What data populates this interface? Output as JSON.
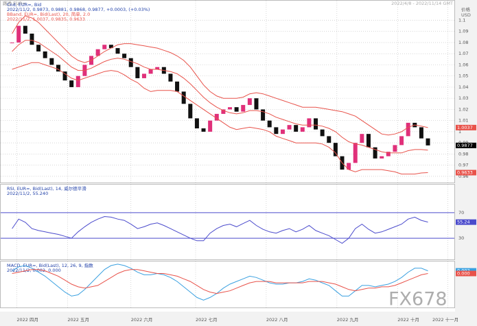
{
  "header": {
    "source": "路透 EUR=",
    "range": "2022/4/8 - 2022/11/14 GMT",
    "axis_title": "价格",
    "axis_unit": "USD",
    "watermark": "FX678"
  },
  "chart_data": [
    {
      "type": "candlestick",
      "title": "Cnd, EUR=, Bid",
      "subtitle": "2022/11/2, 0.9873, 0.9881, 0.9868, 0.9877, +0.0003, (+0.03%)",
      "title_2": "BBand, EUR=, Bid(Last), 20, 简单, 2.0",
      "subtitle_2": "2022/11/2, 1.0037, 0.9835, 0.9633",
      "ylim": [
        0.955,
        1.112
      ],
      "yticks": [
        0.96,
        0.97,
        0.98,
        0.99,
        1,
        1.01,
        1.02,
        1.03,
        1.04,
        1.05,
        1.06,
        1.07,
        1.08,
        1.09,
        1.1
      ],
      "up_color": "#e0307a",
      "down_color": "#111111",
      "series": [
        {
          "role": "candles",
          "color": "#000000",
          "last_value_tag": true,
          "values": [
            1.08,
            1.095,
            1.088,
            1.078,
            1.072,
            1.066,
            1.06,
            1.054,
            1.046,
            1.04,
            1.05,
            1.06,
            1.068,
            1.074,
            1.078,
            1.075,
            1.07,
            1.066,
            1.058,
            1.048,
            1.052,
            1.056,
            1.058,
            1.052,
            1.045,
            1.036,
            1.025,
            1.012,
            1.003,
            1.0,
            1.01,
            1.016,
            1.02,
            1.022,
            1.018,
            1.024,
            1.03,
            1.02,
            1.01,
            1.004,
            0.998,
            1.002,
            1.006,
            1.0,
            1.004,
            1.012,
            1.002,
            0.996,
            0.99,
            0.978,
            0.966,
            0.972,
            0.99,
            0.998,
            0.986,
            0.976,
            0.978,
            0.982,
            0.988,
            0.996,
            1.008,
            1.004,
            0.994,
            0.9877
          ]
        },
        {
          "role": "line",
          "color": "#e8524a",
          "last_value_tag": true,
          "values": [
            1.088,
            1.098,
            1.104,
            1.102,
            1.098,
            1.092,
            1.086,
            1.08,
            1.074,
            1.068,
            1.064,
            1.062,
            1.064,
            1.068,
            1.072,
            1.075,
            1.078,
            1.079,
            1.079,
            1.078,
            1.077,
            1.076,
            1.075,
            1.073,
            1.071,
            1.068,
            1.064,
            1.058,
            1.05,
            1.042,
            1.036,
            1.032,
            1.03,
            1.03,
            1.03,
            1.031,
            1.034,
            1.035,
            1.034,
            1.032,
            1.03,
            1.028,
            1.026,
            1.024,
            1.022,
            1.022,
            1.022,
            1.021,
            1.02,
            1.019,
            1.018,
            1.016,
            1.014,
            1.01,
            1.006,
            1.002,
            0.998,
            0.997,
            0.998,
            1.0,
            1.004,
            1.006,
            1.005,
            1.0037
          ]
        },
        {
          "role": "line",
          "color": "#e8524a",
          "last_value_tag": false,
          "values": [
            1.072,
            1.078,
            1.082,
            1.082,
            1.08,
            1.076,
            1.072,
            1.068,
            1.063,
            1.058,
            1.055,
            1.055,
            1.057,
            1.06,
            1.063,
            1.065,
            1.066,
            1.065,
            1.063,
            1.061,
            1.058,
            1.056,
            1.056,
            1.055,
            1.054,
            1.052,
            1.048,
            1.043,
            1.037,
            1.031,
            1.026,
            1.022,
            1.019,
            1.017,
            1.016,
            1.017,
            1.019,
            1.019,
            1.018,
            1.016,
            1.013,
            1.011,
            1.009,
            1.007,
            1.006,
            1.006,
            1.006,
            1.005,
            1.003,
            1.0,
            0.995,
            0.991,
            0.989,
            0.988,
            0.986,
            0.984,
            0.982,
            0.981,
            0.981,
            0.981,
            0.983,
            0.984,
            0.984,
            0.9835
          ]
        },
        {
          "role": "line",
          "color": "#e8524a",
          "last_value_tag": true,
          "values": [
            1.056,
            1.058,
            1.06,
            1.062,
            1.062,
            1.06,
            1.058,
            1.056,
            1.052,
            1.048,
            1.046,
            1.048,
            1.05,
            1.052,
            1.054,
            1.055,
            1.054,
            1.051,
            1.047,
            1.044,
            1.039,
            1.036,
            1.037,
            1.037,
            1.037,
            1.036,
            1.032,
            1.028,
            1.024,
            1.02,
            1.016,
            1.012,
            1.008,
            1.004,
            1.002,
            1.003,
            1.004,
            1.003,
            1.002,
            1.0,
            0.996,
            0.994,
            0.992,
            0.99,
            0.99,
            0.99,
            0.99,
            0.989,
            0.986,
            0.981,
            0.972,
            0.966,
            0.964,
            0.966,
            0.966,
            0.966,
            0.966,
            0.965,
            0.964,
            0.962,
            0.962,
            0.962,
            0.963,
            0.9633
          ]
        }
      ]
    },
    {
      "type": "line",
      "title": "RSI, EUR=, Bid(Last), 14, 威尔德平滑",
      "subtitle": "2022/11/2, 55.240",
      "ylim": [
        0,
        100
      ],
      "yticks": [
        30,
        70
      ],
      "tick_line_color": "#4a4acc",
      "series": [
        {
          "color": "#4a4acc",
          "last_value_tag": true,
          "values": [
            45,
            60,
            55,
            45,
            42,
            40,
            38,
            36,
            33,
            30,
            40,
            48,
            55,
            60,
            64,
            63,
            60,
            58,
            52,
            45,
            48,
            52,
            54,
            50,
            45,
            40,
            35,
            30,
            26,
            26,
            38,
            45,
            50,
            52,
            48,
            53,
            58,
            50,
            44,
            40,
            38,
            42,
            45,
            40,
            44,
            50,
            42,
            38,
            34,
            28,
            22,
            30,
            45,
            52,
            44,
            38,
            40,
            44,
            48,
            52,
            60,
            63,
            58,
            55.24
          ]
        }
      ]
    },
    {
      "type": "line",
      "title": "MACD, EUR=, Bid(Last), 12, 26, 9, 指数",
      "subtitle": "2022/11/2, 0.002, 0.000",
      "ylim": [
        -0.024,
        0.008
      ],
      "xlim": [
        -1,
        67
      ],
      "xticks": [
        {
          "value": 0.7,
          "label": "2022 四月"
        },
        {
          "value": 8.4,
          "label": "2022 五月"
        },
        {
          "value": 18,
          "label": "2022 六月"
        },
        {
          "value": 27.8,
          "label": "2022 七月"
        },
        {
          "value": 38.5,
          "label": "2022 八月"
        },
        {
          "value": 49.2,
          "label": "2022 九月"
        },
        {
          "value": 58.4,
          "label": "2022 十月"
        },
        {
          "value": 66,
          "label": "2022 十一月"
        }
      ],
      "series": [
        {
          "color": "#3aa0e0",
          "last_value_tag": true,
          "values": [
            0.002,
            0.005,
            0.006,
            0.004,
            0.001,
            -0.002,
            -0.006,
            -0.01,
            -0.014,
            -0.017,
            -0.016,
            -0.012,
            -0.007,
            -0.002,
            0.003,
            0.006,
            0.007,
            0.006,
            0.004,
            0.001,
            -0.001,
            -0.001,
            0,
            -0.001,
            -0.003,
            -0.006,
            -0.01,
            -0.014,
            -0.018,
            -0.02,
            -0.018,
            -0.015,
            -0.011,
            -0.008,
            -0.006,
            -0.004,
            -0.002,
            -0.003,
            -0.005,
            -0.007,
            -0.008,
            -0.008,
            -0.007,
            -0.007,
            -0.006,
            -0.004,
            -0.005,
            -0.007,
            -0.009,
            -0.013,
            -0.017,
            -0.017,
            -0.013,
            -0.009,
            -0.009,
            -0.01,
            -0.009,
            -0.008,
            -0.006,
            -0.003,
            0.001,
            0.004,
            0.004,
            0.002
          ]
        },
        {
          "color": "#e8524a",
          "last_value_tag": true,
          "values": [
            0,
            0.001,
            0.002,
            0.003,
            0.003,
            0.002,
            0,
            -0.002,
            -0.005,
            -0.008,
            -0.01,
            -0.011,
            -0.01,
            -0.009,
            -0.006,
            -0.003,
            0,
            0.002,
            0.003,
            0.003,
            0.002,
            0.001,
            0,
            0,
            -0.001,
            -0.002,
            -0.004,
            -0.006,
            -0.009,
            -0.012,
            -0.014,
            -0.015,
            -0.014,
            -0.013,
            -0.011,
            -0.009,
            -0.007,
            -0.006,
            -0.006,
            -0.006,
            -0.007,
            -0.007,
            -0.007,
            -0.007,
            -0.007,
            -0.006,
            -0.006,
            -0.006,
            -0.007,
            -0.008,
            -0.01,
            -0.012,
            -0.013,
            -0.012,
            -0.011,
            -0.011,
            -0.01,
            -0.01,
            -0.009,
            -0.007,
            -0.005,
            -0.003,
            -0.001,
            0
          ],
          "value_labels": [
            null,
            null,
            null,
            null,
            null,
            null,
            null,
            null,
            null,
            null,
            null,
            null,
            null,
            null,
            null,
            null,
            null,
            null,
            null,
            null,
            null,
            null,
            null,
            null,
            null,
            null,
            null,
            null,
            null,
            null,
            null,
            null,
            null,
            null,
            null,
            null,
            null,
            null,
            null,
            null,
            null,
            null,
            null,
            null,
            null,
            null,
            null,
            null,
            null,
            null,
            null,
            null,
            null,
            null,
            null,
            null,
            null,
            null,
            null,
            null,
            null,
            null,
            null,
            "0.000"
          ]
        }
      ]
    }
  ]
}
